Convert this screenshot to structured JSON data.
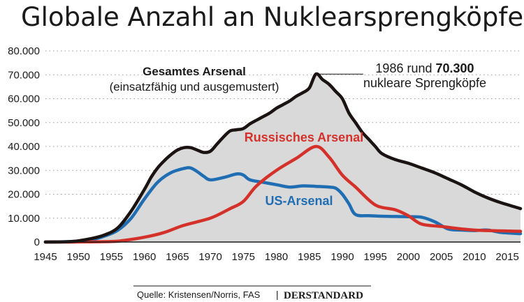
{
  "chart_data": {
    "type": "line",
    "title": "Globale Anzahl an Nuklearsprengköpfen",
    "xlabel": "",
    "ylabel": "",
    "xlim": [
      1945,
      2017
    ],
    "ylim": [
      0,
      80000
    ],
    "x_ticks": [
      1945,
      1950,
      1955,
      1960,
      1965,
      1970,
      1975,
      1980,
      1985,
      1990,
      1995,
      2000,
      2005,
      2010,
      2015
    ],
    "y_ticks": [
      0,
      10000,
      20000,
      30000,
      40000,
      50000,
      60000,
      70000,
      80000
    ],
    "y_tick_labels": [
      "0",
      "10.000",
      "20.000",
      "30.000",
      "40.000",
      "50.000",
      "60.000",
      "70.000",
      "80.000"
    ],
    "grid": "horizontal-dotted",
    "series": [
      {
        "name": "Gesamtes Arsenal",
        "sublabel": "(einsatzfähig und ausgemustert)",
        "color": "#1a1311",
        "fill": "#d9d9d9",
        "x": [
          1945,
          1949,
          1952,
          1954,
          1956,
          1958,
          1960,
          1961,
          1962,
          1963,
          1964,
          1965,
          1966,
          1967,
          1968,
          1969,
          1970,
          1971,
          1972,
          1973,
          1974,
          1975,
          1976,
          1977,
          1978,
          1979,
          1980,
          1981,
          1982,
          1983,
          1984,
          1985,
          1986,
          1987,
          1988,
          1989,
          1990,
          1991,
          1992,
          1993,
          1994,
          1995,
          1996,
          1998,
          2000,
          2002,
          2004,
          2006,
          2008,
          2010,
          2012,
          2014,
          2017
        ],
        "values": [
          0,
          200,
          1500,
          3000,
          6000,
          13000,
          22000,
          27000,
          31000,
          34000,
          36500,
          38500,
          39500,
          39500,
          38500,
          37500,
          38000,
          41000,
          44000,
          46500,
          47000,
          47500,
          49500,
          51000,
          52500,
          54000,
          56000,
          57500,
          59000,
          61000,
          62500,
          64500,
          70300,
          68000,
          66000,
          63000,
          60000,
          54000,
          50000,
          46000,
          43000,
          40000,
          37000,
          34500,
          33000,
          31000,
          29000,
          26500,
          24000,
          21000,
          18500,
          16500,
          14000
        ]
      },
      {
        "name": "Russisches Arsenal",
        "color": "#d4312a",
        "x": [
          1945,
          1949,
          1955,
          1957,
          1960,
          1963,
          1966,
          1970,
          1973,
          1975,
          1977,
          1980,
          1983,
          1986,
          1988,
          1990,
          1992,
          1995,
          1998,
          2000,
          2002,
          2005,
          2010,
          2017
        ],
        "values": [
          0,
          0,
          200,
          700,
          2000,
          4000,
          7000,
          10000,
          14000,
          17000,
          23500,
          30000,
          35000,
          40000,
          35500,
          28000,
          23000,
          15500,
          13500,
          11000,
          7500,
          6500,
          5000,
          4500
        ]
      },
      {
        "name": "US-Arsenal",
        "color": "#1f6db3",
        "x": [
          1945,
          1949,
          1952,
          1954,
          1956,
          1958,
          1960,
          1962,
          1964,
          1966,
          1967,
          1968,
          1969,
          1970,
          1972,
          1974,
          1975,
          1976,
          1978,
          1980,
          1982,
          1984,
          1986,
          1988,
          1989,
          1990,
          1991,
          1992,
          1994,
          1996,
          1998,
          2000,
          2002,
          2004,
          2006,
          2008,
          2010,
          2012,
          2014,
          2017
        ],
        "values": [
          0,
          200,
          1000,
          2500,
          5000,
          10000,
          18000,
          25000,
          29000,
          30800,
          31000,
          29500,
          27500,
          26000,
          27000,
          28500,
          28000,
          26000,
          25000,
          24000,
          23000,
          23500,
          23300,
          23000,
          22500,
          20000,
          16000,
          11500,
          11000,
          10800,
          10700,
          10600,
          10400,
          8500,
          5500,
          5000,
          4800,
          5000,
          4000,
          3500
        ]
      }
    ],
    "annotations": [
      {
        "text_prefix": "1986 rund",
        "text_bold": "70.300",
        "text_line2": "nukleare Sprengköpfe",
        "x": 1986,
        "y": 70300
      }
    ],
    "source": "Quelle: Kristensen/Norris, FAS",
    "brand": "DERSTANDARD"
  }
}
